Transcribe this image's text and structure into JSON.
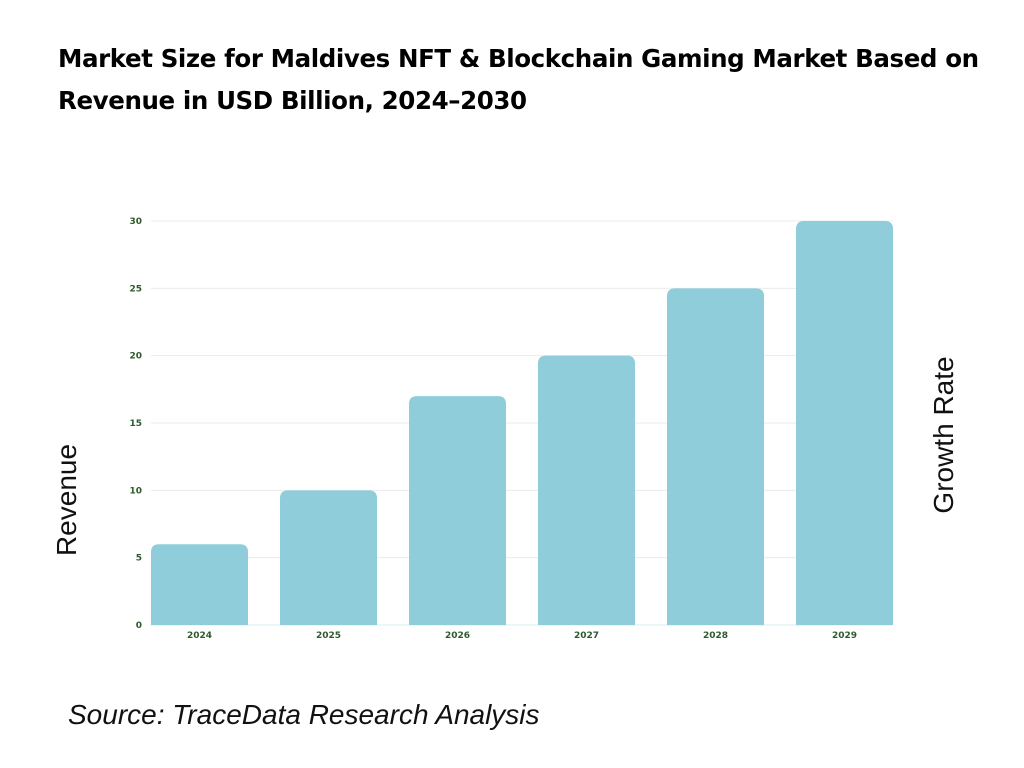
{
  "title": "Market Size for Maldives NFT & Blockchain Gaming Market Based on Revenue in USD Billion, 2024–2030",
  "source": "Source: TraceData Research Analysis",
  "colors": {
    "bar": "#8ecdd9",
    "grid": "#ebebeb",
    "tick_text": "#2d5a2d",
    "axis_line": "#d6ecef"
  },
  "chart_data": {
    "type": "bar",
    "title": "Market Size for Maldives NFT & Blockchain Gaming Market Based on Revenue in USD Billion, 2024–2030",
    "categories": [
      "2024",
      "2025",
      "2026",
      "2027",
      "2028",
      "2029"
    ],
    "values": [
      6,
      10,
      17,
      20,
      25,
      30
    ],
    "xlabel": "",
    "ylabel": "Revenue",
    "y2label": "Growth Rate",
    "ylim": [
      0,
      30
    ],
    "yticks": [
      0,
      5,
      10,
      15,
      20,
      25,
      30
    ],
    "grid": true,
    "legend": "none"
  }
}
